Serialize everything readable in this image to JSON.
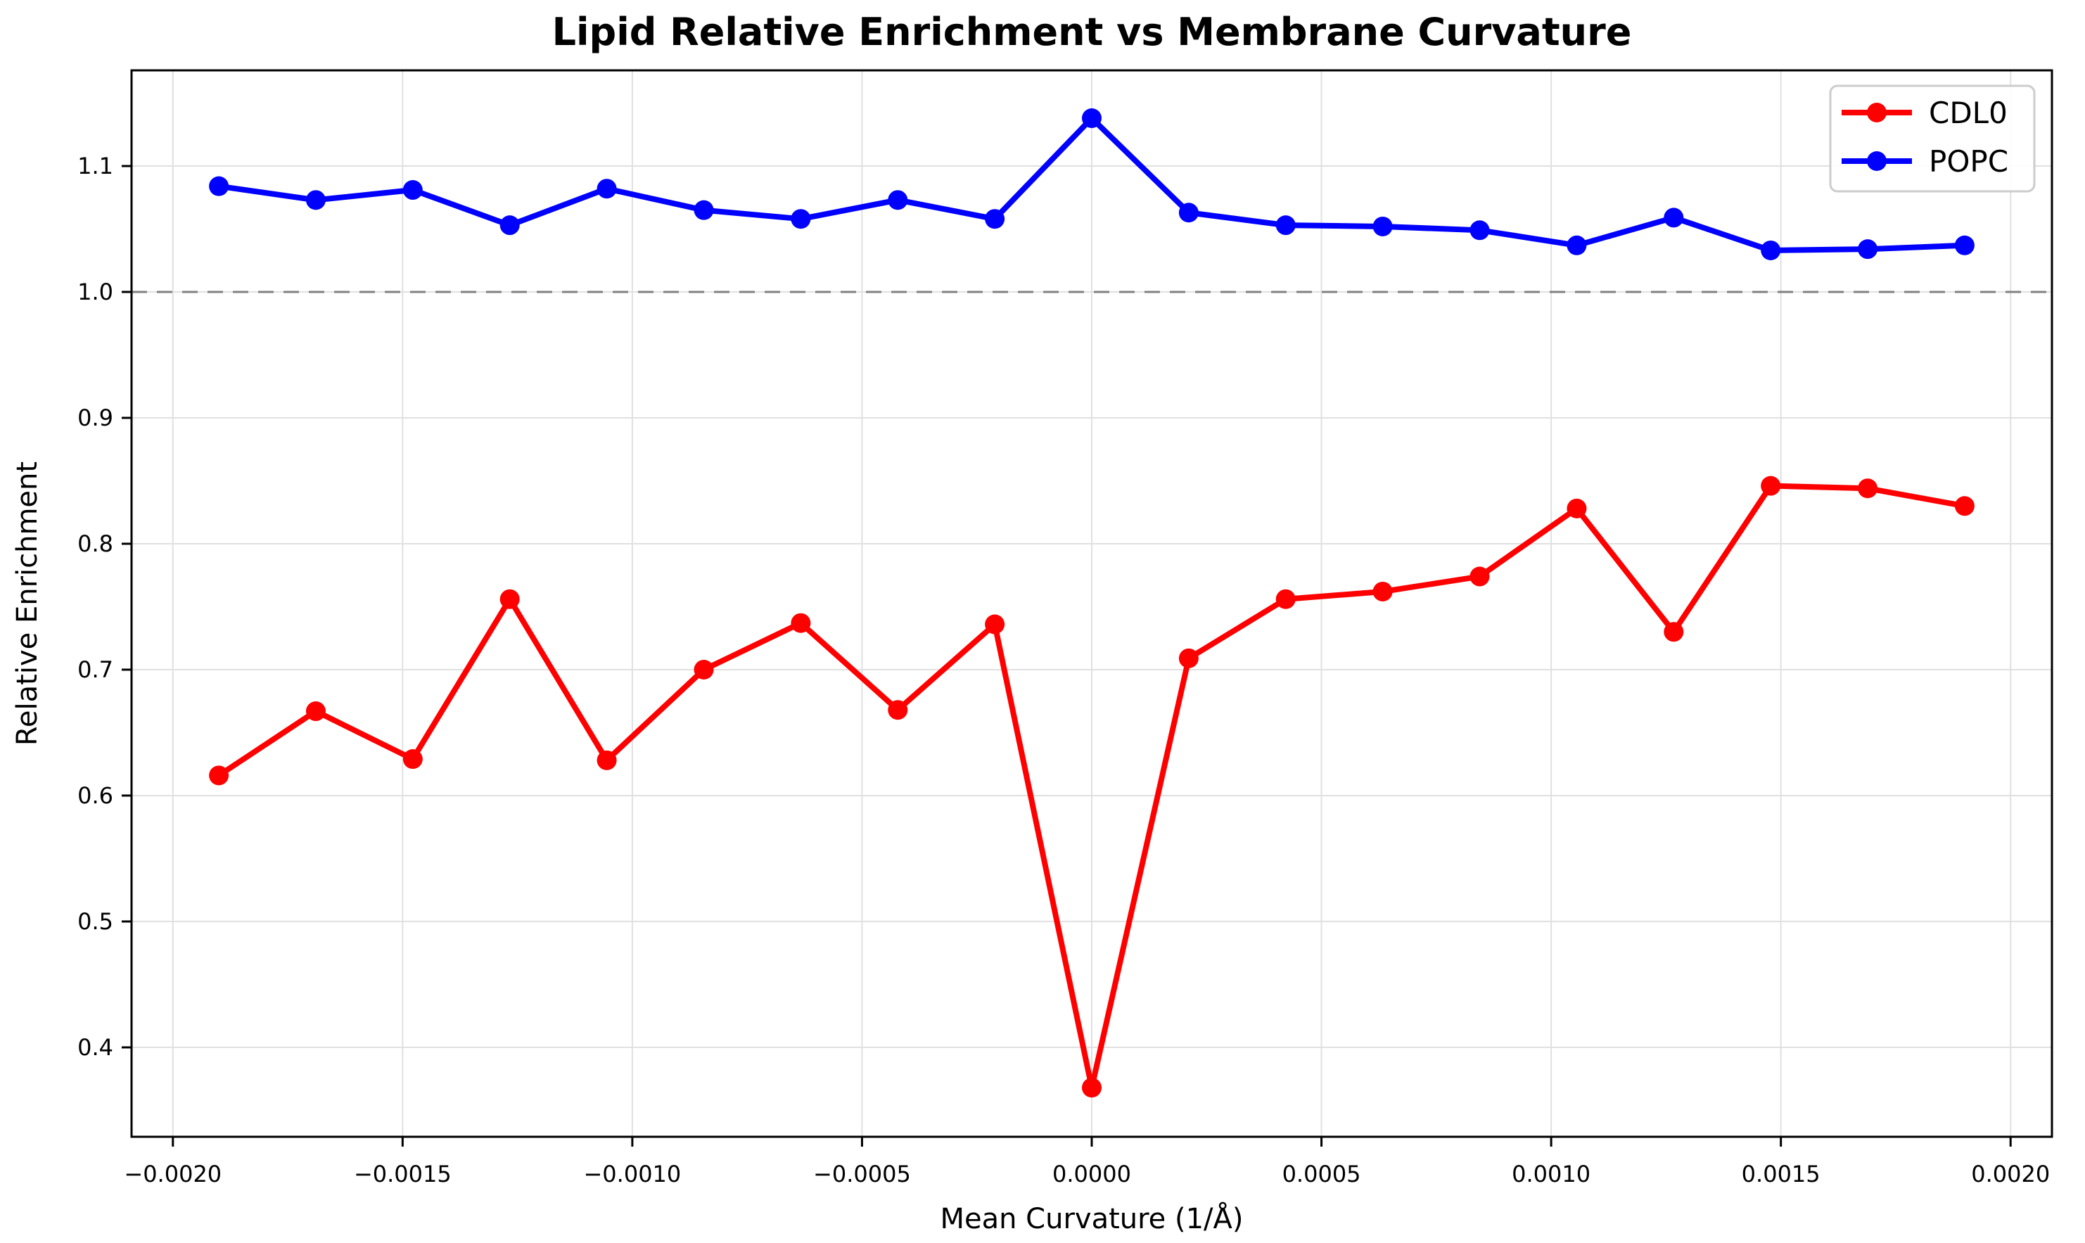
{
  "figure": {
    "background": "#ffffff"
  },
  "chart_data": {
    "type": "line",
    "title": "Lipid Relative Enrichment vs Membrane Curvature",
    "xlabel": "Mean Curvature (1/Å)",
    "ylabel": "Relative Enrichment",
    "xlim": [
      -0.00209,
      0.00209
    ],
    "ylim": [
      0.329,
      1.176
    ],
    "grid": true,
    "legend_position": "upper right",
    "x_ticks": {
      "values": [
        -0.002,
        -0.0015,
        -0.001,
        -0.0005,
        0.0,
        0.0005,
        0.001,
        0.0015,
        0.002
      ],
      "labels": [
        "−0.0020",
        "−0.0015",
        "−0.0010",
        "−0.0005",
        "0.0000",
        "0.0005",
        "0.0010",
        "0.0015",
        "0.0020"
      ]
    },
    "y_ticks": {
      "values": [
        0.4,
        0.5,
        0.6,
        0.7,
        0.8,
        0.9,
        1.0,
        1.1
      ],
      "labels": [
        "0.4",
        "0.5",
        "0.6",
        "0.7",
        "0.8",
        "0.9",
        "1.0",
        "1.1"
      ]
    },
    "reference_line": {
      "y": 1.0,
      "style": "dashed",
      "color": "#808080"
    },
    "x": [
      -0.0019,
      -0.0016889,
      -0.0014778,
      -0.0012667,
      -0.0010556,
      -0.0008444,
      -0.0006333,
      -0.0004222,
      -0.0002111,
      0.0,
      0.0002111,
      0.0004222,
      0.0006333,
      0.0008444,
      0.0010556,
      0.0012667,
      0.0014778,
      0.0016889,
      0.0019
    ],
    "series": [
      {
        "name": "CDL0",
        "color": "#ff0000",
        "values": [
          0.616,
          0.667,
          0.629,
          0.756,
          0.628,
          0.7,
          0.737,
          0.668,
          0.736,
          0.368,
          0.709,
          0.756,
          0.762,
          0.774,
          0.828,
          0.73,
          0.846,
          0.844,
          0.83
        ]
      },
      {
        "name": "POPC",
        "color": "#0000ff",
        "values": [
          1.084,
          1.073,
          1.081,
          1.053,
          1.082,
          1.065,
          1.058,
          1.073,
          1.058,
          1.138,
          1.063,
          1.053,
          1.052,
          1.049,
          1.037,
          1.059,
          1.033,
          1.034,
          1.037
        ]
      }
    ]
  },
  "style": {
    "grid_color": "#e0e0e0",
    "spine_color": "#000000",
    "tick_color": "#000000",
    "legend_border_color": "#cccccc",
    "legend_background": "#ffffff",
    "line_width": 8,
    "marker_radius": 14
  }
}
